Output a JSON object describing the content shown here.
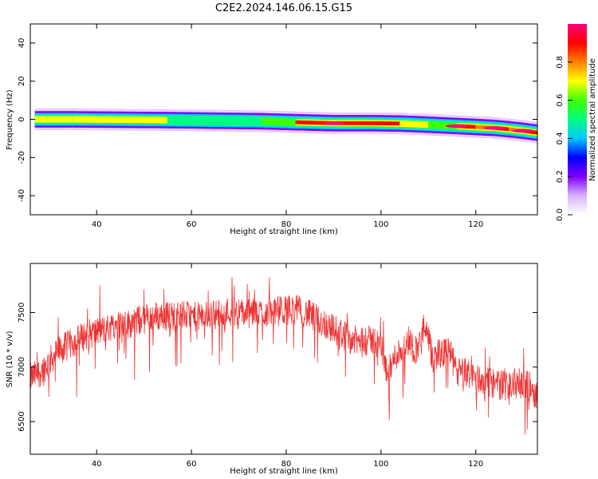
{
  "figure_title": "C2E2.2024.146.06.15.G15",
  "chart_data": [
    {
      "type": "heatmap",
      "xlabel": "Height of straight line (km)",
      "ylabel": "Frequency (Hz)",
      "xlim": [
        26,
        133
      ],
      "ylim": [
        -50,
        50
      ],
      "xticks": [
        40,
        60,
        80,
        100,
        120
      ],
      "yticks": [
        40,
        20,
        0,
        -20,
        -40
      ],
      "colorbar": {
        "label": "Normalized spectral amplitude",
        "range": [
          0,
          1
        ],
        "ticks": [
          0.0,
          0.2,
          0.4,
          0.6,
          0.8
        ],
        "colormap": [
          "#ffffff",
          "#d9b3ff",
          "#8000ff",
          "#0000ff",
          "#00c8ff",
          "#00ff80",
          "#40ff00",
          "#ffff00",
          "#ff8000",
          "#ff0000",
          "#ff0080"
        ]
      },
      "ridge": [
        {
          "x": 27,
          "freq": 0.0,
          "amp": 0.7
        },
        {
          "x": 35,
          "freq": 0.0,
          "amp": 0.65
        },
        {
          "x": 45,
          "freq": -0.2,
          "amp": 0.68
        },
        {
          "x": 55,
          "freq": -0.4,
          "amp": 0.62
        },
        {
          "x": 65,
          "freq": -0.7,
          "amp": 0.55
        },
        {
          "x": 75,
          "freq": -1.0,
          "amp": 0.6
        },
        {
          "x": 82,
          "freq": -1.5,
          "amp": 0.85
        },
        {
          "x": 90,
          "freq": -2.0,
          "amp": 0.95
        },
        {
          "x": 98,
          "freq": -2.0,
          "amp": 0.9
        },
        {
          "x": 104,
          "freq": -2.2,
          "amp": 0.75
        },
        {
          "x": 110,
          "freq": -2.8,
          "amp": 0.6
        },
        {
          "x": 116,
          "freq": -3.5,
          "amp": 0.95
        },
        {
          "x": 120,
          "freq": -4.0,
          "amp": 0.8
        },
        {
          "x": 124,
          "freq": -4.5,
          "amp": 0.95
        },
        {
          "x": 127,
          "freq": -5.2,
          "amp": 0.8
        },
        {
          "x": 130,
          "freq": -6.0,
          "amp": 0.95
        },
        {
          "x": 133,
          "freq": -7.0,
          "amp": 0.5
        }
      ]
    },
    {
      "type": "line",
      "xlabel": "Height of straight line (km)",
      "ylabel": "SNR (10 * v/v)",
      "xlim": [
        26,
        133
      ],
      "ylim": [
        6200,
        7950
      ],
      "xticks": [
        40,
        60,
        80,
        100,
        120
      ],
      "yticks": [
        7500,
        7000,
        6500
      ],
      "series": [
        {
          "color": "#ee3333",
          "x": [
            26,
            28,
            30,
            32,
            34,
            36,
            38,
            40,
            42,
            44,
            46,
            48,
            50,
            52,
            54,
            56,
            58,
            60,
            62,
            64,
            66,
            68,
            70,
            72,
            74,
            76,
            78,
            80,
            82,
            84,
            86,
            88,
            90,
            92,
            94,
            96,
            98,
            100,
            101,
            102,
            103,
            104,
            105,
            106,
            107,
            108,
            109,
            110,
            111,
            112,
            113,
            114,
            116,
            118,
            120,
            122,
            124,
            126,
            128,
            130,
            132,
            133
          ],
          "values": [
            6900,
            6950,
            7050,
            7150,
            7200,
            7250,
            7300,
            7320,
            7350,
            7400,
            7380,
            7420,
            7440,
            7460,
            7470,
            7470,
            7480,
            7460,
            7460,
            7480,
            7490,
            7510,
            7500,
            7490,
            7500,
            7500,
            7510,
            7520,
            7530,
            7500,
            7450,
            7400,
            7350,
            7300,
            7250,
            7220,
            7250,
            7200,
            7000,
            6980,
            7100,
            7150,
            7180,
            7260,
            7150,
            7200,
            7350,
            7250,
            7050,
            7150,
            7100,
            7200,
            6950,
            6950,
            6900,
            6870,
            6850,
            6830,
            6850,
            6850,
            6800,
            6720
          ]
        }
      ]
    }
  ]
}
